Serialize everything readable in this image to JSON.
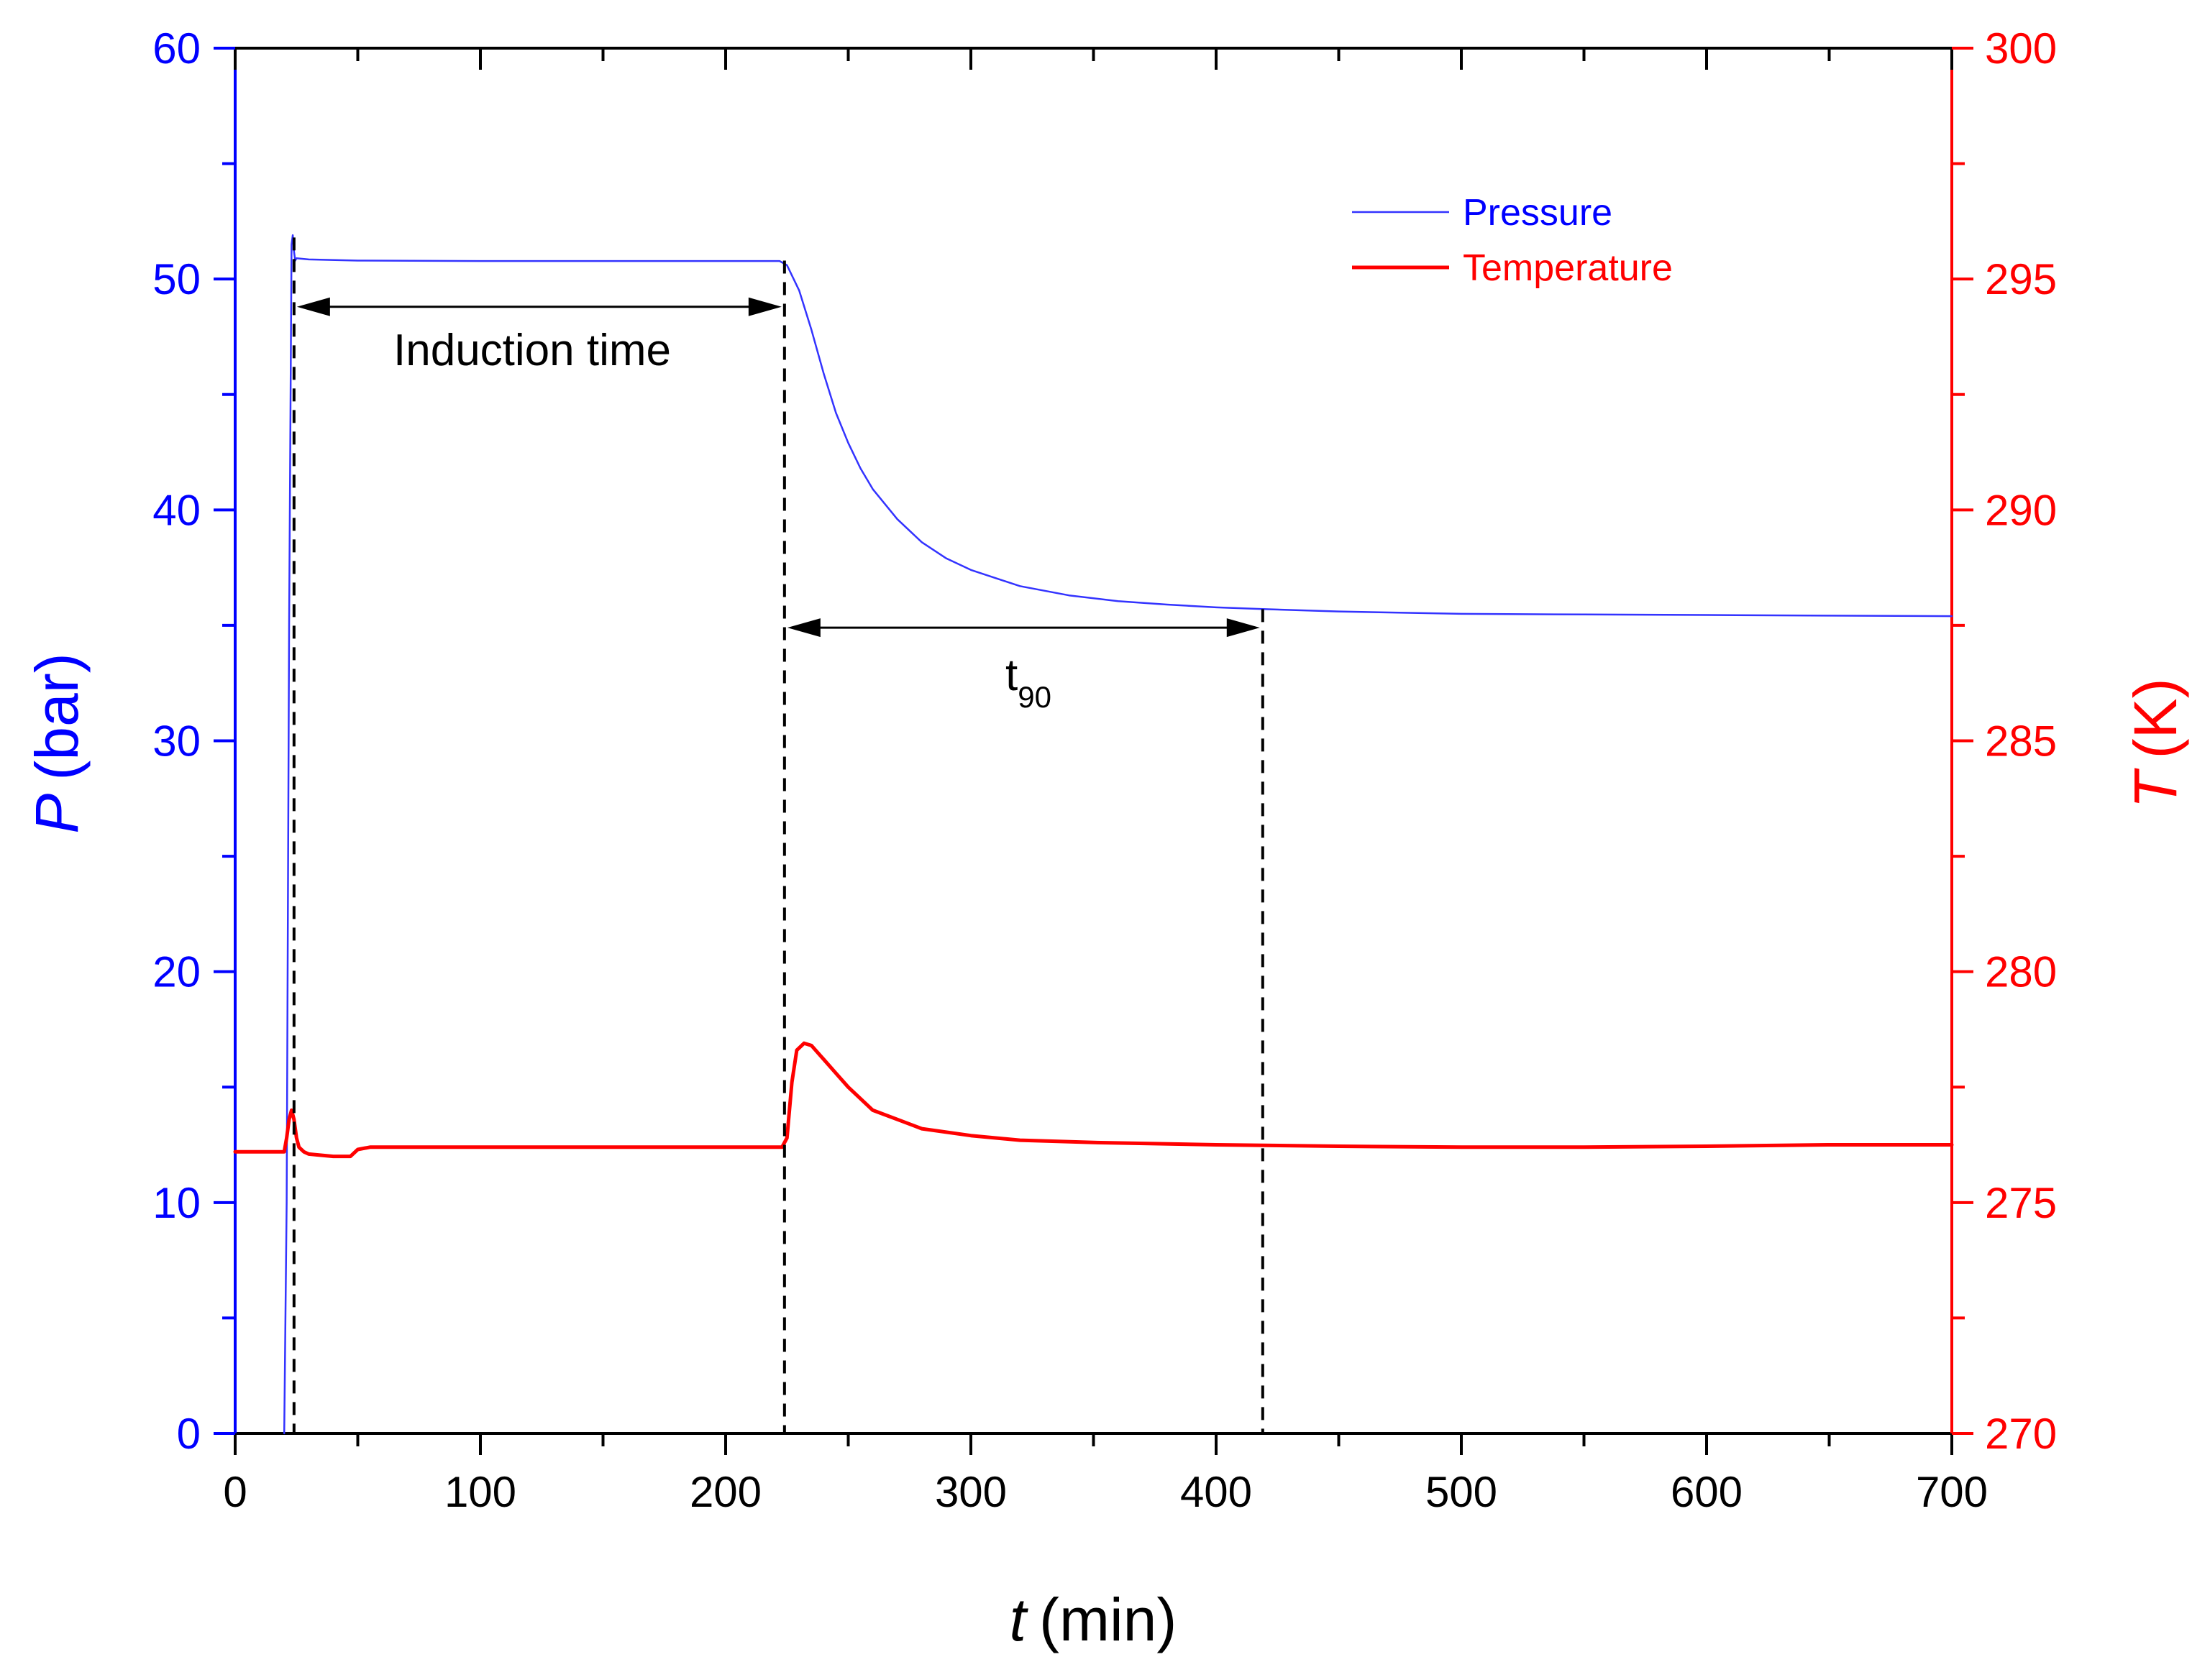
{
  "chart_data": {
    "type": "line",
    "title": "",
    "xlabel": {
      "symbol": "t",
      "unit": "(min)"
    },
    "ylabel_left": {
      "symbol": "P",
      "unit": "(bar)"
    },
    "ylabel_right": {
      "symbol": "T",
      "unit": "(K)"
    },
    "xlim": [
      0,
      700
    ],
    "ylim_left": [
      0,
      60
    ],
    "ylim_right": [
      270,
      300
    ],
    "x_ticks": [
      0,
      100,
      200,
      300,
      400,
      500,
      600,
      700
    ],
    "y_ticks_left": [
      0,
      10,
      20,
      30,
      40,
      50,
      60
    ],
    "y_ticks_right": [
      270,
      275,
      280,
      285,
      290,
      295,
      300
    ],
    "grid": false,
    "legend_position": "top-right",
    "colors": {
      "left_axis": "#0000ff",
      "right_axis": "#ff0000",
      "pressure": "#3333ff",
      "temperature": "#ff0000",
      "annotation": "#000000"
    },
    "series": [
      {
        "name": "Pressure",
        "axis": "left",
        "x": [
          20,
          21,
          22,
          23,
          23.5,
          24,
          24.5,
          25,
          30,
          50,
          100,
          150,
          200,
          222,
          225,
          230,
          235,
          240,
          245,
          250,
          255,
          260,
          270,
          280,
          290,
          300,
          320,
          340,
          360,
          380,
          400,
          420,
          450,
          500,
          550,
          600,
          650,
          700
        ],
        "values": [
          0,
          10,
          35,
          51.5,
          51.9,
          51.2,
          50.8,
          50.9,
          50.85,
          50.8,
          50.78,
          50.78,
          50.78,
          50.78,
          50.6,
          49.5,
          47.8,
          45.9,
          44.2,
          42.9,
          41.8,
          40.9,
          39.6,
          38.6,
          37.9,
          37.4,
          36.7,
          36.3,
          36.05,
          35.9,
          35.78,
          35.7,
          35.6,
          35.5,
          35.47,
          35.45,
          35.42,
          35.4
        ]
      },
      {
        "name": "Temperature",
        "axis": "right",
        "x": [
          0,
          20,
          21,
          22,
          23,
          24,
          25,
          26,
          28,
          30,
          40,
          47,
          50,
          55,
          60,
          100,
          150,
          200,
          223,
          225,
          227,
          229,
          232,
          235,
          240,
          245,
          250,
          260,
          270,
          280,
          300,
          320,
          350,
          400,
          450,
          500,
          550,
          600,
          650,
          700
        ],
        "values": [
          276.1,
          276.1,
          276.4,
          276.8,
          277.0,
          276.8,
          276.4,
          276.2,
          276.1,
          276.05,
          276.0,
          276.0,
          276.15,
          276.2,
          276.2,
          276.2,
          276.2,
          276.2,
          276.2,
          276.4,
          277.6,
          278.3,
          278.45,
          278.4,
          278.1,
          277.8,
          277.5,
          277.0,
          276.8,
          276.6,
          276.45,
          276.35,
          276.3,
          276.25,
          276.22,
          276.2,
          276.2,
          276.22,
          276.25,
          276.25
        ]
      }
    ],
    "legend": [
      {
        "label": "Pressure"
      },
      {
        "label": "Temperature"
      }
    ],
    "annotations": {
      "markers_x": [
        24,
        224,
        419
      ],
      "induction": {
        "label": "Induction time",
        "x_start": 24,
        "x_end": 224,
        "y": 48.8
      },
      "t90": {
        "label_main": "t",
        "label_sub": "90",
        "x_start": 224,
        "x_end": 419,
        "y": 34.9
      }
    }
  }
}
